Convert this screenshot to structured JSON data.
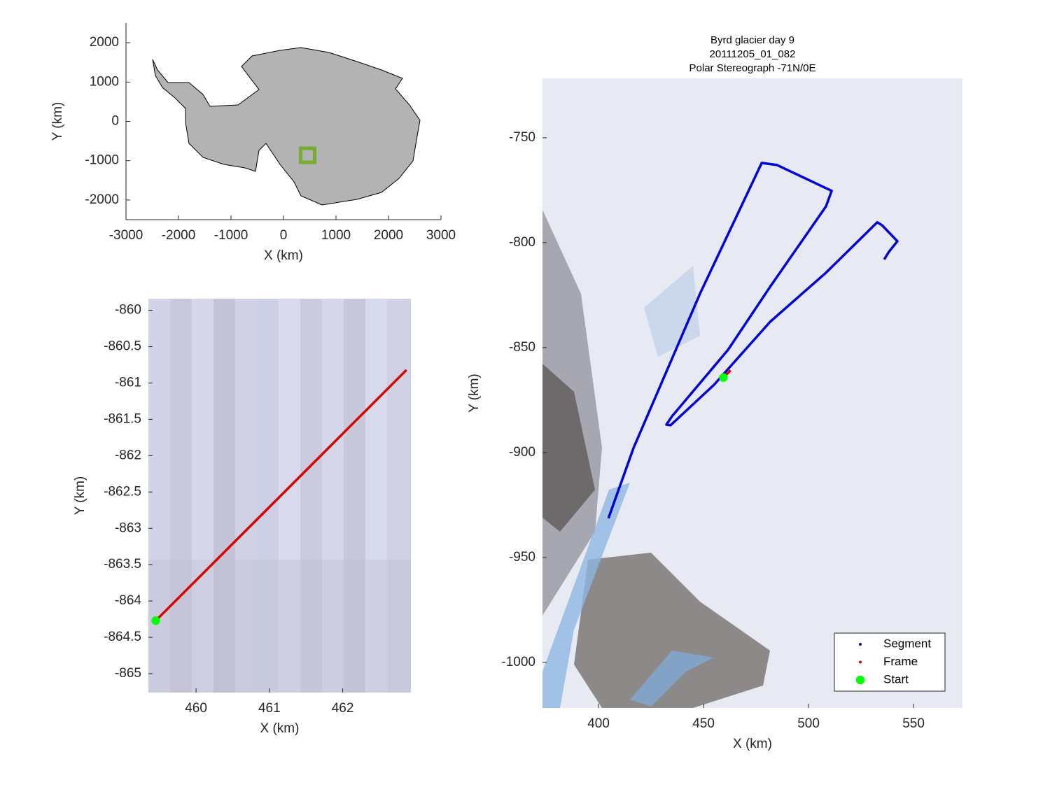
{
  "chart_data": [
    {
      "type": "map",
      "xlabel": "X (km)",
      "ylabel": "Y (km)",
      "xlim": [
        -3000,
        3000
      ],
      "ylim": [
        -2500,
        2500
      ],
      "xticks": [
        -3000,
        -2000,
        -1000,
        0,
        1000,
        2000,
        3000
      ],
      "yticks": [
        -2000,
        -1000,
        0,
        1000,
        2000
      ],
      "series": [
        {
          "color": "#77ac30",
          "marker": "s",
          "x": [
            460
          ],
          "y": [
            -864
          ]
        }
      ]
    },
    {
      "type": "line",
      "xlabel": "X (km)",
      "ylabel": "Y (km)",
      "xlim": [
        459.35,
        462.93
      ],
      "ylim": [
        -865.26,
        -859.84
      ],
      "xticks": [
        460,
        461,
        462
      ],
      "yticks": [
        -865,
        -864.5,
        -864,
        -863.5,
        -863,
        -862.5,
        -862,
        -861.5,
        -861,
        -860.5,
        -860
      ],
      "series": [
        {
          "color": "#e00000",
          "marker": "line",
          "x": [
            459.45,
            462.87
          ],
          "y": [
            -864.27,
            -860.82
          ]
        },
        {
          "color": "#00ff00",
          "marker": "o",
          "x": [
            459.45
          ],
          "y": [
            -864.27
          ]
        }
      ]
    },
    {
      "type": "line",
      "title": [
        "Byrd glacier day 9",
        "20111205_01_082",
        "Polar Stereograph -71N/0E"
      ],
      "xlabel": "X (km)",
      "ylabel": "Y (km)",
      "xlim": [
        373.3,
        573.3
      ],
      "ylim": [
        -1021.7,
        -721.7
      ],
      "xticks": [
        400,
        450,
        500,
        550
      ],
      "yticks": [
        -1000,
        -950,
        -900,
        -850,
        -800,
        -750
      ],
      "legend": "southeast",
      "series": [
        {
          "name": "Segment",
          "color": "#0000dd",
          "marker": "line",
          "x": [
            404.7,
            416.7,
            448.3,
            477.7,
            485,
            511,
            508.3,
            481.7,
            461.7,
            435,
            432.3,
            434.3,
            455,
            481.7,
            508.3,
            532.7,
            535,
            542.3,
            538.3,
            536
          ],
          "y": [
            -931.3,
            -897.7,
            -824.3,
            -762,
            -763,
            -775.3,
            -782.7,
            -821,
            -851,
            -882.7,
            -886.7,
            -887,
            -867.7,
            -837.7,
            -814.3,
            -790.3,
            -791.7,
            -799.3,
            -804.3,
            -808
          ]
        },
        {
          "name": "Frame",
          "color": "#e00000",
          "marker": "line",
          "x": [
            459.45,
            462.87
          ],
          "y": [
            -864.27,
            -860.82
          ]
        },
        {
          "name": "Start",
          "color": "#00ff00",
          "marker": "o",
          "x": [
            459.45
          ],
          "y": [
            -864.27
          ]
        }
      ]
    }
  ]
}
